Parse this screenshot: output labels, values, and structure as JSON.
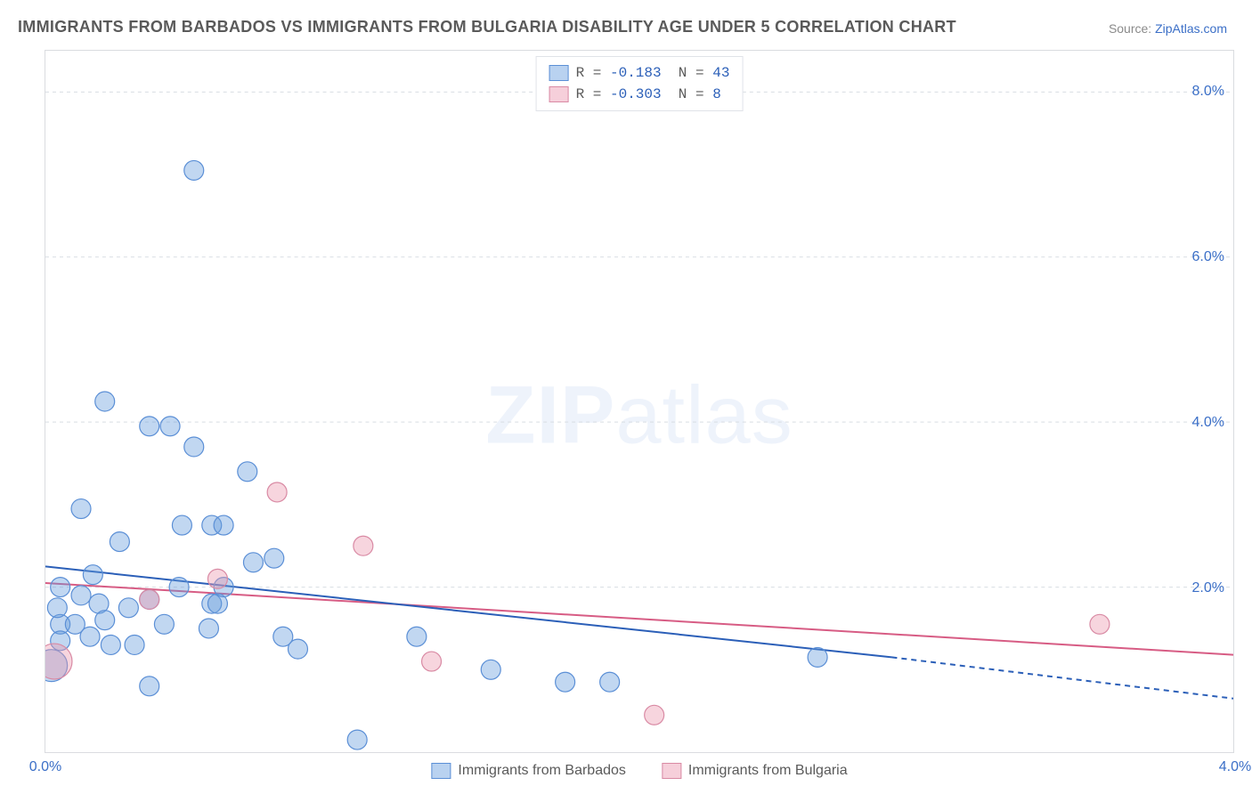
{
  "title": "IMMIGRANTS FROM BARBADOS VS IMMIGRANTS FROM BULGARIA DISABILITY AGE UNDER 5 CORRELATION CHART",
  "source_prefix": "Source: ",
  "source_link": "ZipAtlas.com",
  "ylabel": "Disability Age Under 5",
  "watermark_bold": "ZIP",
  "watermark_rest": "atlas",
  "chart": {
    "type": "scatter",
    "xlim": [
      0.0,
      4.0
    ],
    "ylim": [
      0.0,
      8.5
    ],
    "xticks": [
      {
        "pos": 0.0,
        "label": "0.0%"
      },
      {
        "pos": 4.0,
        "label": "4.0%"
      }
    ],
    "yticks": [
      {
        "pos": 2.0,
        "label": "2.0%"
      },
      {
        "pos": 4.0,
        "label": "4.0%"
      },
      {
        "pos": 6.0,
        "label": "6.0%"
      },
      {
        "pos": 8.0,
        "label": "8.0%"
      }
    ],
    "grid_color": "#d8dde3",
    "background_color": "#ffffff",
    "border_color": "#dadce0",
    "marker_radius": 11,
    "marker_radius_large": 18,
    "series": {
      "barbados": {
        "label": "Immigrants from Barbados",
        "fill": "rgba(99,155,221,0.40)",
        "stroke": "#5b8fd6",
        "stroke_width": 1.2,
        "trend": {
          "x1": 0.0,
          "y1": 2.25,
          "x2": 2.85,
          "y2": 1.15,
          "x2_dash": 4.0,
          "y2_dash": 0.65,
          "color": "#2b5fb8",
          "width": 2
        },
        "points": [
          {
            "x": 0.02,
            "y": 1.05,
            "r": 18
          },
          {
            "x": 0.05,
            "y": 1.55
          },
          {
            "x": 0.05,
            "y": 1.35
          },
          {
            "x": 0.04,
            "y": 1.75
          },
          {
            "x": 0.1,
            "y": 1.55
          },
          {
            "x": 0.12,
            "y": 1.9
          },
          {
            "x": 0.15,
            "y": 1.4
          },
          {
            "x": 0.18,
            "y": 1.8
          },
          {
            "x": 0.2,
            "y": 1.6
          },
          {
            "x": 0.22,
            "y": 1.3
          },
          {
            "x": 0.28,
            "y": 1.75
          },
          {
            "x": 0.16,
            "y": 2.15
          },
          {
            "x": 0.05,
            "y": 2.0
          },
          {
            "x": 0.35,
            "y": 1.85
          },
          {
            "x": 0.3,
            "y": 1.3
          },
          {
            "x": 0.35,
            "y": 0.8
          },
          {
            "x": 0.4,
            "y": 1.55
          },
          {
            "x": 0.45,
            "y": 2.0
          },
          {
            "x": 0.56,
            "y": 1.8
          },
          {
            "x": 0.55,
            "y": 1.5
          },
          {
            "x": 0.58,
            "y": 1.8
          },
          {
            "x": 0.6,
            "y": 2.0
          },
          {
            "x": 0.7,
            "y": 2.3
          },
          {
            "x": 0.8,
            "y": 1.4
          },
          {
            "x": 0.85,
            "y": 1.25
          },
          {
            "x": 1.05,
            "y": 0.15
          },
          {
            "x": 1.25,
            "y": 1.4
          },
          {
            "x": 1.5,
            "y": 1.0
          },
          {
            "x": 1.75,
            "y": 0.85
          },
          {
            "x": 1.9,
            "y": 0.85
          },
          {
            "x": 2.6,
            "y": 1.15
          },
          {
            "x": 0.12,
            "y": 2.95
          },
          {
            "x": 0.25,
            "y": 2.55
          },
          {
            "x": 0.46,
            "y": 2.75
          },
          {
            "x": 0.56,
            "y": 2.75
          },
          {
            "x": 0.6,
            "y": 2.75
          },
          {
            "x": 0.77,
            "y": 2.35
          },
          {
            "x": 0.2,
            "y": 4.25
          },
          {
            "x": 0.35,
            "y": 3.95
          },
          {
            "x": 0.42,
            "y": 3.95
          },
          {
            "x": 0.5,
            "y": 3.7
          },
          {
            "x": 0.68,
            "y": 3.4
          },
          {
            "x": 0.5,
            "y": 7.05
          }
        ]
      },
      "bulgaria": {
        "label": "Immigrants from Bulgaria",
        "fill": "rgba(236,149,173,0.40)",
        "stroke": "#d98aa4",
        "stroke_width": 1.2,
        "trend": {
          "x1": 0.0,
          "y1": 2.05,
          "x2": 4.0,
          "y2": 1.18,
          "color": "#d75c84",
          "width": 2
        },
        "points": [
          {
            "x": 0.03,
            "y": 1.1,
            "r": 20
          },
          {
            "x": 0.35,
            "y": 1.85
          },
          {
            "x": 0.58,
            "y": 2.1
          },
          {
            "x": 0.78,
            "y": 3.15
          },
          {
            "x": 1.07,
            "y": 2.5
          },
          {
            "x": 1.3,
            "y": 1.1
          },
          {
            "x": 2.05,
            "y": 0.45
          },
          {
            "x": 3.55,
            "y": 1.55
          }
        ]
      }
    },
    "stats_legend": [
      {
        "swatch": "blue",
        "r_label": "R =",
        "r_val": "-0.183",
        "n_label": "N =",
        "n_val": "43"
      },
      {
        "swatch": "pink",
        "r_label": "R =",
        "r_val": "-0.303",
        "n_label": "N =",
        "n_val": " 8"
      }
    ]
  },
  "colors": {
    "title": "#5a5a5a",
    "tick": "#3b6fc7",
    "link": "#3b6fc7",
    "watermark": "#eef3fb"
  }
}
